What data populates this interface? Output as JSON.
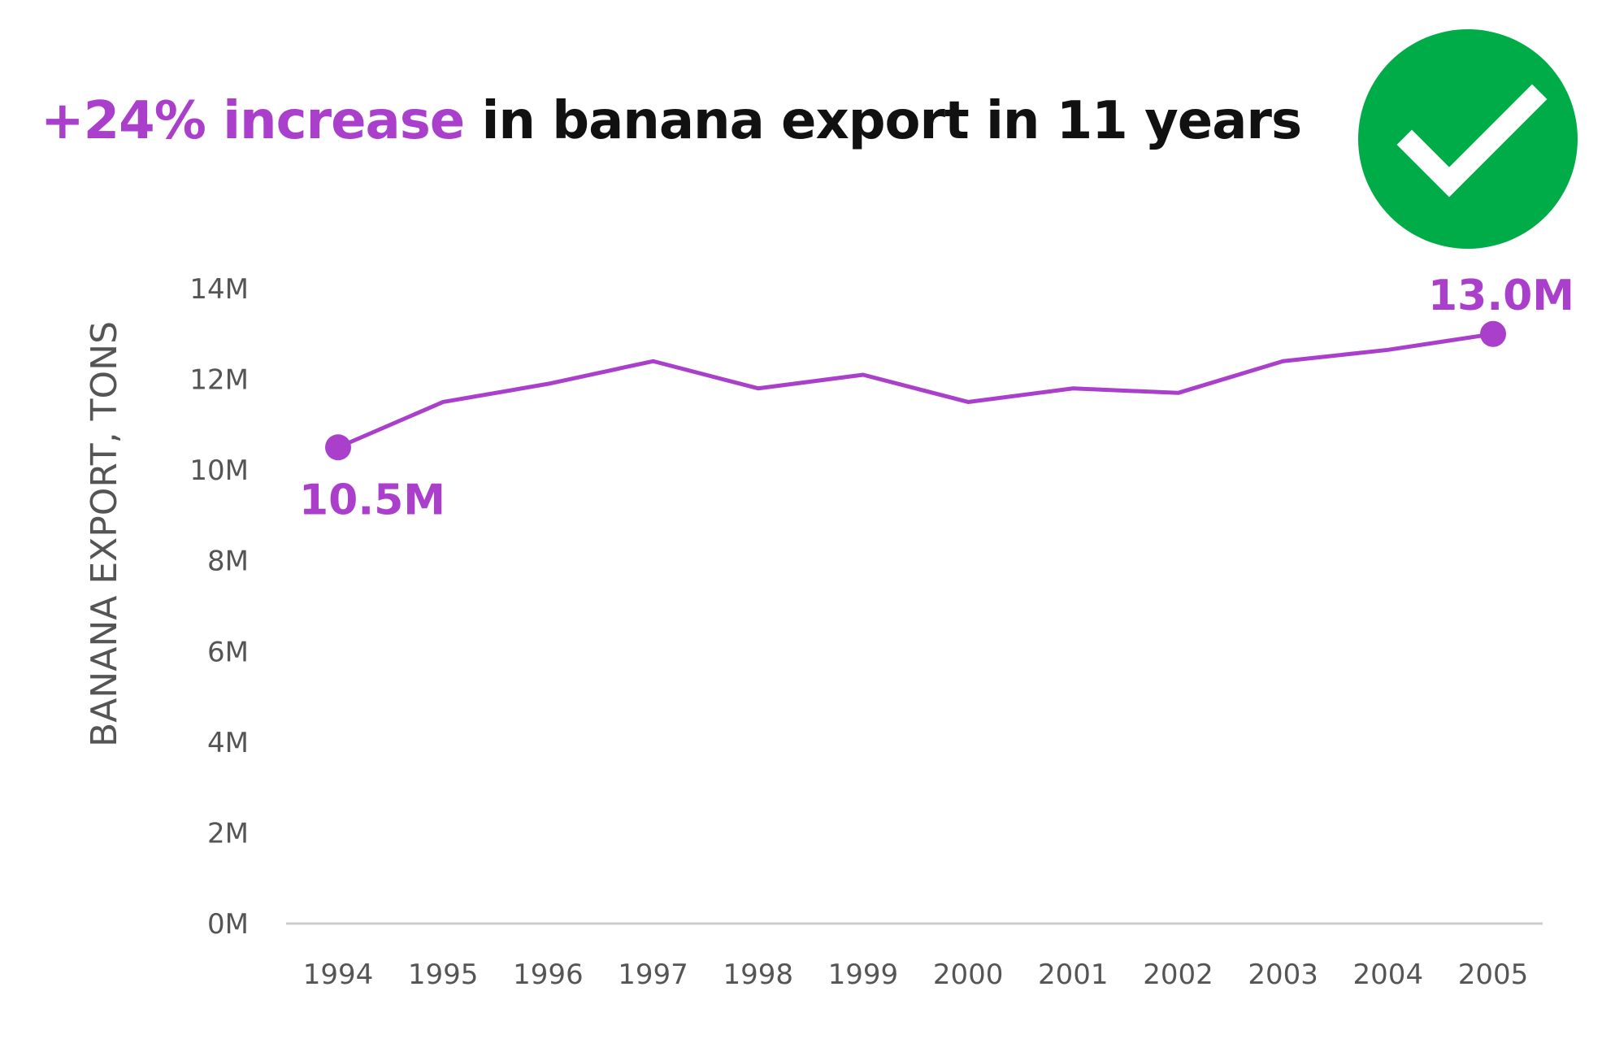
{
  "headline": {
    "highlight": "+24% increase",
    "rest": " in banana export in 11 years"
  },
  "badge": {
    "icon": "checkmark-icon",
    "color": "#00ac47"
  },
  "colors": {
    "accent": "#aa3fcc",
    "axis_text": "#555555",
    "baseline": "#cccccc"
  },
  "chart_data": {
    "type": "line",
    "title": "+24% increase in banana export in 11 years",
    "xlabel": "",
    "ylabel": "BANANA EXPORT, TONS",
    "categories": [
      "1994",
      "1995",
      "1996",
      "1997",
      "1998",
      "1999",
      "2000",
      "2001",
      "2002",
      "2003",
      "2004",
      "2005"
    ],
    "series": [
      {
        "values": [
          10.5,
          11.5,
          11.9,
          12.4,
          11.8,
          12.1,
          11.5,
          11.8,
          11.7,
          12.4,
          12.65,
          13.0
        ]
      }
    ],
    "ylim": [
      0,
      14
    ],
    "yticks": [
      0,
      2,
      4,
      6,
      8,
      10,
      12,
      14
    ],
    "ytick_labels": [
      "0M",
      "2M",
      "4M",
      "6M",
      "8M",
      "10M",
      "12M",
      "14M"
    ],
    "grid": false,
    "annotations": [
      {
        "index": 0,
        "text": "10.5M",
        "position": "below"
      },
      {
        "index": 11,
        "text": "13.0M",
        "position": "above"
      }
    ]
  }
}
